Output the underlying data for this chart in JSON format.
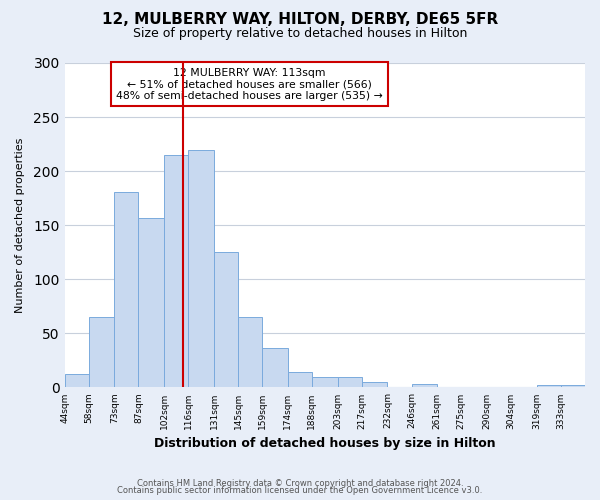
{
  "title": "12, MULBERRY WAY, HILTON, DERBY, DE65 5FR",
  "subtitle": "Size of property relative to detached houses in Hilton",
  "xlabel": "Distribution of detached houses by size in Hilton",
  "ylabel": "Number of detached properties",
  "footer_line1": "Contains HM Land Registry data © Crown copyright and database right 2024.",
  "footer_line2": "Contains public sector information licensed under the Open Government Licence v3.0.",
  "bin_labels": [
    "44sqm",
    "58sqm",
    "73sqm",
    "87sqm",
    "102sqm",
    "116sqm",
    "131sqm",
    "145sqm",
    "159sqm",
    "174sqm",
    "188sqm",
    "203sqm",
    "217sqm",
    "232sqm",
    "246sqm",
    "261sqm",
    "275sqm",
    "290sqm",
    "304sqm",
    "319sqm",
    "333sqm"
  ],
  "bin_edges": [
    44,
    58,
    73,
    87,
    102,
    116,
    131,
    145,
    159,
    174,
    188,
    203,
    217,
    232,
    246,
    261,
    275,
    290,
    304,
    319,
    333
  ],
  "bar_heights": [
    12,
    65,
    181,
    157,
    215,
    220,
    125,
    65,
    36,
    14,
    10,
    10,
    5,
    0,
    3,
    0,
    0,
    0,
    0,
    2,
    2
  ],
  "bar_color": "#c8d9f0",
  "bar_edge_color": "#7aaadd",
  "vline_color": "#cc0000",
  "vline_x": 113,
  "annotation_title": "12 MULBERRY WAY: 113sqm",
  "annotation_line1": "← 51% of detached houses are smaller (566)",
  "annotation_line2": "48% of semi-detached houses are larger (535) →",
  "annotation_box_color": "#ffffff",
  "annotation_box_edge": "#cc0000",
  "ylim": [
    0,
    300
  ],
  "xlim_left": 44,
  "xlim_right": 347,
  "figure_bg": "#e8eef8",
  "plot_bg": "#ffffff",
  "grid_color": "#c8d0dc",
  "title_fontsize": 11,
  "subtitle_fontsize": 9
}
